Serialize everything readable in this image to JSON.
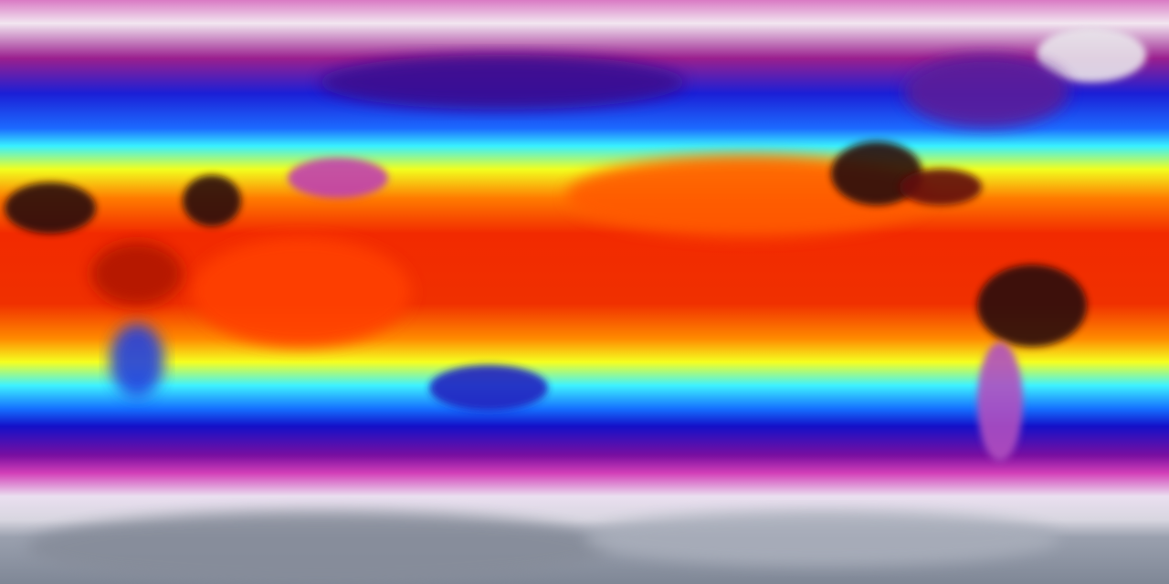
{
  "map": {
    "type": "global temperature field",
    "projection": "equirectangular",
    "colormap": [
      {
        "stop": 0.0,
        "color": "#d97ac4"
      },
      {
        "stop": 0.04,
        "color": "#f2e6f0"
      },
      {
        "stop": 0.1,
        "color": "#9a1f8e"
      },
      {
        "stop": 0.16,
        "color": "#1b1fd6"
      },
      {
        "stop": 0.22,
        "color": "#1c6bff"
      },
      {
        "stop": 0.25,
        "color": "#38f0ff"
      },
      {
        "stop": 0.29,
        "color": "#f2ff1e"
      },
      {
        "stop": 0.34,
        "color": "#ff7a00"
      },
      {
        "stop": 0.4,
        "color": "#f22a00"
      },
      {
        "stop": 0.52,
        "color": "#f03000"
      },
      {
        "stop": 0.58,
        "color": "#ff8a00"
      },
      {
        "stop": 0.62,
        "color": "#f5ff20"
      },
      {
        "stop": 0.66,
        "color": "#3ef2ff"
      },
      {
        "stop": 0.7,
        "color": "#1570ff"
      },
      {
        "stop": 0.73,
        "color": "#1410c8"
      },
      {
        "stop": 0.78,
        "color": "#7a0fa0"
      },
      {
        "stop": 0.81,
        "color": "#d23fb8"
      },
      {
        "stop": 0.85,
        "color": "#eadff0"
      },
      {
        "stop": 0.89,
        "color": "#d8d6e0"
      },
      {
        "stop": 0.92,
        "color": "#9aa0ae"
      },
      {
        "stop": 1.0,
        "color": "#7f8796"
      }
    ],
    "features": {
      "hot_land": "#2a1010",
      "greenland": "#e8e4ea",
      "tibet": "#c040b0",
      "australia": "#2020c0",
      "antarctica": "#868c9a"
    }
  }
}
